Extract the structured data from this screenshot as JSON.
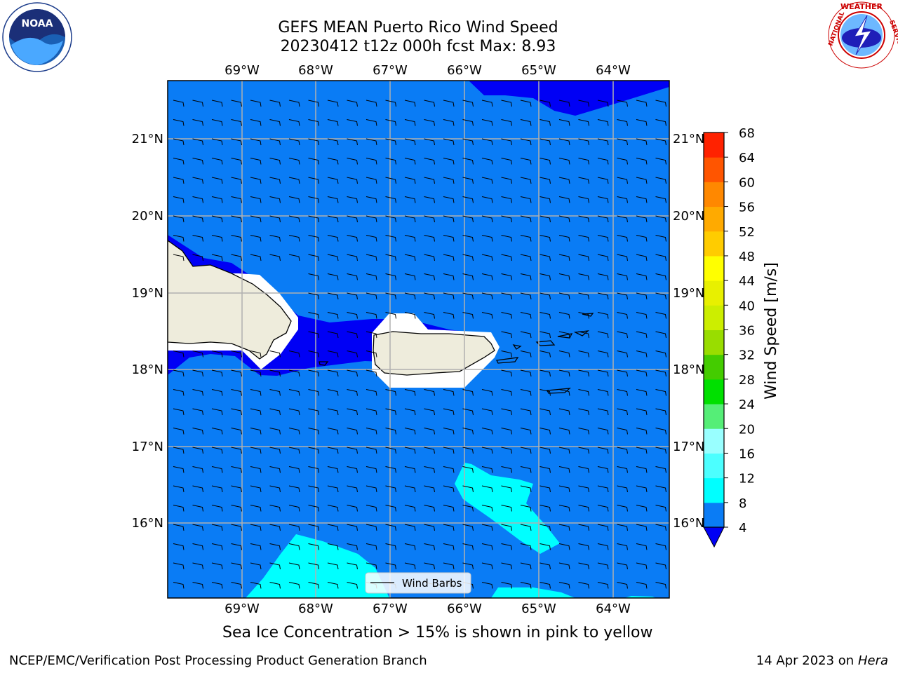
{
  "header": {
    "title_line1": "GEFS MEAN Puerto Rico Wind Speed",
    "title_line2": "20230412 t12z 000h fcst   Max: 8.93"
  },
  "map": {
    "lon_ticks": [
      "69°W",
      "68°W",
      "67°W",
      "66°W",
      "65°W",
      "64°W"
    ],
    "lat_ticks": [
      "21°N",
      "20°N",
      "19°N",
      "18°N",
      "17°N",
      "16°N"
    ],
    "legend_label": "Wind Barbs",
    "colors": {
      "ocean_4_8": "#0a7cf5",
      "band_0_4": "#0000f5",
      "band_8_12": "#00ffff",
      "land": "#eeecdc",
      "masked": "#ffffff"
    }
  },
  "colorbar": {
    "label": "Wind Speed [m/s]",
    "ticks": [
      "4",
      "8",
      "12",
      "16",
      "20",
      "24",
      "28",
      "32",
      "36",
      "40",
      "44",
      "48",
      "52",
      "56",
      "60",
      "64",
      "68"
    ],
    "band_colors": [
      "#0a7cf5",
      "#00ffff",
      "#4cffff",
      "#99ffff",
      "#55ee77",
      "#00e000",
      "#44cc00",
      "#99dd00",
      "#ccee00",
      "#e8f000",
      "#ffff00",
      "#ffcc00",
      "#ffaa00",
      "#ff8800",
      "#ff5500",
      "#ff2200"
    ],
    "extend_color": "#0000f5"
  },
  "footer": {
    "sea_ice_note": "Sea Ice Concentration > 15% is shown in pink to yellow",
    "branch": "NCEP/EMC/Verification Post Processing Product Generation Branch",
    "date_prefix": "14 Apr 2023 on ",
    "date_host": "Hera"
  },
  "logos": {
    "noaa": "NOAA",
    "nws": "NATIONAL WEATHER SERVICE"
  }
}
